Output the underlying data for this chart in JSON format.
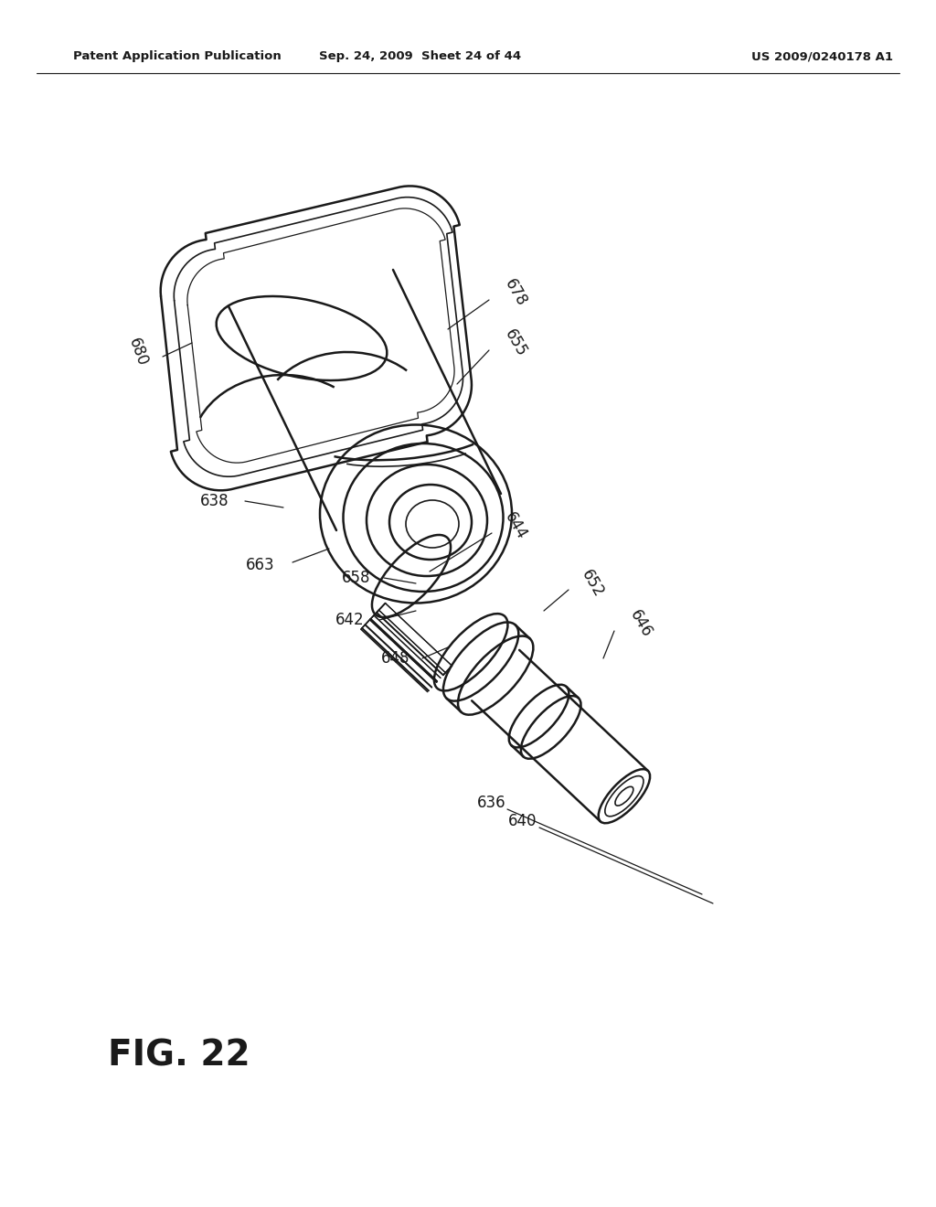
{
  "bg_color": "#ffffff",
  "line_color": "#1a1a1a",
  "header_left": "Patent Application Publication",
  "header_mid": "Sep. 24, 2009  Sheet 24 of 44",
  "header_right": "US 2009/0240178 A1",
  "fig_label": "FIG. 22"
}
